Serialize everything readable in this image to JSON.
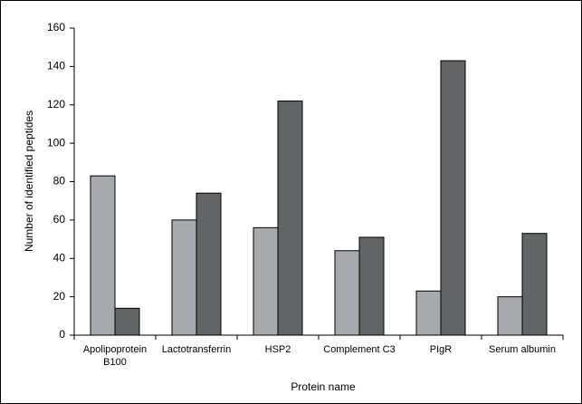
{
  "chart_data": {
    "type": "bar",
    "x_label": "Protein name",
    "y_label": "Number of identified peptides",
    "categories": [
      "Apolipoprotein B100",
      "Lactotransferrin",
      "HSP2",
      "Complement C3",
      "PIgR",
      "Serum albumin"
    ],
    "series": [
      {
        "color": "#a7a9ac",
        "values": [
          83,
          60,
          56,
          44,
          23,
          20
        ]
      },
      {
        "color": "#636466",
        "values": [
          14,
          74,
          122,
          51,
          143,
          53
        ]
      }
    ],
    "ylim": [
      0,
      160
    ],
    "yticks": [
      0,
      20,
      40,
      60,
      80,
      100,
      120,
      140,
      160
    ],
    "grid": false
  }
}
